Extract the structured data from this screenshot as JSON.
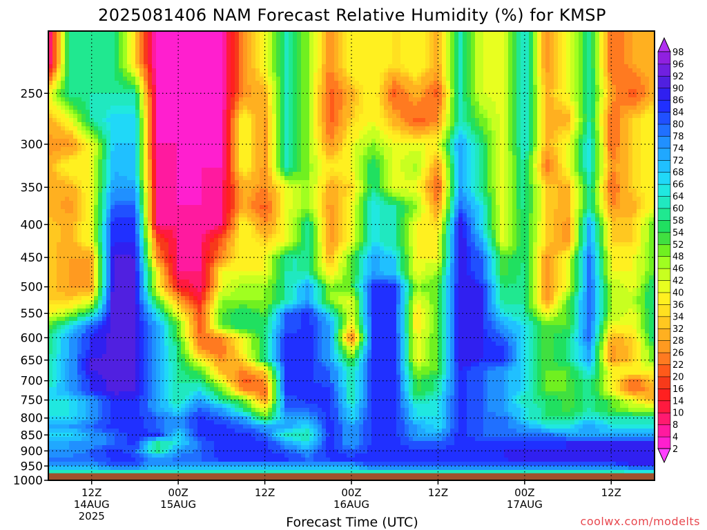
{
  "chart_data": {
    "type": "heatmap",
    "title": "2025081406 NAM Forecast Relative Humidity (%) for KMSP",
    "xlabel": "Forecast Time (UTC)",
    "ylabel": "",
    "credit": "coolwx.com/modelts",
    "y_axis": {
      "unit": "hPa",
      "range": [
        1000,
        200
      ],
      "tick_labels": [
        "250",
        "300",
        "350",
        "400",
        "450",
        "500",
        "550",
        "600",
        "650",
        "700",
        "750",
        "800",
        "850",
        "900",
        "950",
        "1000"
      ]
    },
    "x_axis": {
      "range_hours": [
        0,
        84
      ],
      "ticks": [
        {
          "hour": 6,
          "lines": [
            "12Z",
            "14AUG",
            "2025"
          ]
        },
        {
          "hour": 18,
          "lines": [
            "00Z",
            "15AUG"
          ]
        },
        {
          "hour": 30,
          "lines": [
            "12Z"
          ]
        },
        {
          "hour": 42,
          "lines": [
            "00Z",
            "16AUG"
          ]
        },
        {
          "hour": 54,
          "lines": [
            "12Z"
          ]
        },
        {
          "hour": 66,
          "lines": [
            "00Z",
            "17AUG"
          ]
        },
        {
          "hour": 78,
          "lines": [
            "12Z"
          ]
        }
      ]
    },
    "grid": true,
    "below_ground_level_hpa": 975,
    "below_ground_color": "#a0522d",
    "colorbar": {
      "placement": "right",
      "levels": [
        2,
        4,
        8,
        10,
        14,
        16,
        20,
        22,
        26,
        28,
        32,
        34,
        36,
        40,
        42,
        46,
        48,
        52,
        54,
        58,
        60,
        64,
        66,
        68,
        72,
        74,
        78,
        80,
        84,
        86,
        90,
        92,
        96,
        98
      ],
      "colors": [
        "#ff40ff",
        "#ff1fcf",
        "#ff1a9f",
        "#ff1a6f",
        "#ff1a3f",
        "#ff2020",
        "#f73a1a",
        "#ff5a1a",
        "#ff7a20",
        "#ff9a20",
        "#ffb020",
        "#ffc820",
        "#ffe020",
        "#fff020",
        "#e8ff20",
        "#c8ff20",
        "#a0ff20",
        "#70f020",
        "#40e040",
        "#20e060",
        "#20e890",
        "#20e8c0",
        "#20e8e0",
        "#20d8f8",
        "#20c0ff",
        "#20a8ff",
        "#2090ff",
        "#2070ff",
        "#2050ff",
        "#2030ff",
        "#3020f0",
        "#5020e0",
        "#7020e0",
        "#9020e0",
        "#b030f0"
      ]
    },
    "hours": [
      0,
      3,
      6,
      9,
      12,
      15,
      18,
      21,
      24,
      27,
      30,
      33,
      36,
      39,
      42,
      45,
      48,
      51,
      54,
      57,
      60,
      63,
      66,
      69,
      72,
      75,
      78,
      81,
      84
    ],
    "levels_hpa": [
      225,
      250,
      275,
      300,
      325,
      350,
      375,
      400,
      425,
      450,
      475,
      500,
      525,
      550,
      575,
      600,
      625,
      650,
      675,
      700,
      725,
      750,
      775,
      800,
      825,
      850,
      875,
      900,
      925,
      950,
      975
    ],
    "rh": [
      [
        4,
        60,
        60,
        60,
        35,
        4,
        4,
        4,
        4,
        26,
        40,
        62,
        48,
        26,
        40,
        40,
        35,
        40,
        30,
        62,
        42,
        40,
        66,
        26,
        40,
        60,
        22,
        28,
        30
      ],
      [
        40,
        60,
        60,
        60,
        60,
        4,
        4,
        4,
        4,
        26,
        30,
        62,
        48,
        20,
        30,
        40,
        20,
        30,
        20,
        62,
        42,
        40,
        66,
        30,
        40,
        60,
        28,
        20,
        30
      ],
      [
        30,
        40,
        60,
        68,
        68,
        4,
        4,
        4,
        4,
        40,
        26,
        62,
        48,
        20,
        34,
        40,
        30,
        20,
        26,
        62,
        50,
        40,
        66,
        30,
        30,
        60,
        22,
        34,
        40
      ],
      [
        26,
        26,
        40,
        68,
        68,
        4,
        4,
        4,
        4,
        40,
        26,
        62,
        48,
        26,
        40,
        48,
        40,
        40,
        40,
        74,
        58,
        40,
        66,
        30,
        40,
        66,
        22,
        34,
        40
      ],
      [
        30,
        40,
        40,
        72,
        68,
        8,
        4,
        4,
        4,
        40,
        26,
        62,
        48,
        36,
        40,
        58,
        40,
        48,
        26,
        74,
        58,
        40,
        60,
        22,
        40,
        66,
        26,
        34,
        40
      ],
      [
        30,
        30,
        40,
        74,
        74,
        8,
        4,
        4,
        8,
        30,
        26,
        40,
        48,
        30,
        34,
        58,
        40,
        40,
        20,
        74,
        58,
        40,
        60,
        34,
        30,
        60,
        22,
        34,
        40
      ],
      [
        30,
        26,
        40,
        80,
        80,
        8,
        4,
        4,
        8,
        30,
        20,
        40,
        48,
        26,
        40,
        66,
        60,
        48,
        26,
        80,
        66,
        40,
        60,
        34,
        30,
        60,
        26,
        30,
        40
      ],
      [
        34,
        30,
        40,
        86,
        86,
        8,
        8,
        4,
        8,
        40,
        26,
        40,
        60,
        26,
        40,
        66,
        60,
        40,
        34,
        90,
        66,
        40,
        58,
        34,
        26,
        74,
        34,
        34,
        52
      ],
      [
        34,
        30,
        40,
        86,
        86,
        22,
        8,
        8,
        22,
        40,
        34,
        40,
        60,
        26,
        40,
        66,
        60,
        40,
        40,
        90,
        74,
        40,
        58,
        34,
        26,
        74,
        34,
        34,
        52
      ],
      [
        34,
        28,
        28,
        92,
        90,
        26,
        8,
        8,
        26,
        40,
        40,
        60,
        60,
        30,
        52,
        74,
        68,
        40,
        40,
        90,
        80,
        52,
        58,
        26,
        40,
        80,
        40,
        40,
        52
      ],
      [
        34,
        28,
        28,
        92,
        90,
        40,
        8,
        8,
        40,
        40,
        40,
        60,
        60,
        36,
        52,
        74,
        68,
        40,
        48,
        90,
        80,
        52,
        60,
        26,
        40,
        80,
        40,
        40,
        52
      ],
      [
        34,
        28,
        28,
        92,
        90,
        40,
        14,
        8,
        40,
        48,
        48,
        60,
        74,
        48,
        52,
        86,
        86,
        48,
        52,
        90,
        86,
        58,
        60,
        26,
        40,
        80,
        46,
        40,
        60
      ],
      [
        34,
        34,
        40,
        92,
        90,
        52,
        30,
        14,
        48,
        48,
        48,
        60,
        74,
        48,
        40,
        86,
        86,
        40,
        52,
        90,
        86,
        58,
        60,
        26,
        52,
        80,
        46,
        46,
        60
      ],
      [
        40,
        46,
        60,
        92,
        90,
        66,
        40,
        20,
        52,
        58,
        52,
        80,
        86,
        66,
        40,
        86,
        86,
        36,
        52,
        90,
        86,
        66,
        60,
        40,
        52,
        80,
        46,
        40,
        60
      ],
      [
        52,
        66,
        80,
        92,
        90,
        74,
        52,
        20,
        52,
        58,
        58,
        80,
        86,
        74,
        36,
        86,
        86,
        36,
        52,
        90,
        86,
        74,
        66,
        52,
        52,
        80,
        40,
        40,
        60
      ],
      [
        58,
        74,
        86,
        92,
        90,
        74,
        52,
        22,
        26,
        40,
        58,
        86,
        86,
        74,
        20,
        86,
        86,
        40,
        52,
        90,
        86,
        80,
        66,
        52,
        58,
        80,
        30,
        34,
        60
      ],
      [
        58,
        74,
        86,
        92,
        90,
        74,
        58,
        26,
        22,
        40,
        58,
        86,
        86,
        74,
        40,
        86,
        86,
        40,
        52,
        90,
        86,
        86,
        66,
        52,
        58,
        74,
        26,
        34,
        52
      ],
      [
        60,
        74,
        90,
        92,
        90,
        74,
        58,
        40,
        26,
        34,
        58,
        86,
        86,
        74,
        52,
        86,
        86,
        40,
        52,
        90,
        86,
        86,
        66,
        52,
        58,
        74,
        26,
        34,
        52
      ],
      [
        60,
        74,
        90,
        92,
        90,
        74,
        60,
        52,
        30,
        26,
        34,
        86,
        86,
        80,
        60,
        86,
        86,
        48,
        52,
        86,
        80,
        74,
        66,
        52,
        52,
        66,
        40,
        40,
        40
      ],
      [
        60,
        74,
        86,
        92,
        90,
        74,
        60,
        58,
        40,
        20,
        26,
        86,
        86,
        80,
        60,
        86,
        86,
        52,
        60,
        86,
        80,
        74,
        66,
        52,
        52,
        60,
        40,
        22,
        34
      ],
      [
        66,
        74,
        86,
        92,
        90,
        74,
        60,
        66,
        52,
        26,
        22,
        86,
        86,
        86,
        60,
        86,
        86,
        52,
        60,
        86,
        80,
        74,
        66,
        52,
        52,
        60,
        40,
        22,
        30
      ],
      [
        66,
        66,
        74,
        86,
        86,
        74,
        60,
        74,
        58,
        52,
        26,
        80,
        86,
        86,
        60,
        86,
        86,
        60,
        66,
        86,
        80,
        74,
        60,
        58,
        52,
        60,
        52,
        40,
        30
      ],
      [
        66,
        66,
        74,
        86,
        86,
        74,
        66,
        80,
        74,
        58,
        40,
        80,
        80,
        86,
        66,
        86,
        86,
        66,
        66,
        86,
        80,
        74,
        66,
        58,
        52,
        60,
        52,
        46,
        46
      ],
      [
        66,
        66,
        74,
        86,
        86,
        80,
        74,
        86,
        80,
        74,
        52,
        74,
        74,
        86,
        66,
        86,
        86,
        66,
        66,
        86,
        80,
        80,
        66,
        58,
        58,
        66,
        60,
        60,
        60
      ],
      [
        74,
        74,
        80,
        86,
        86,
        80,
        74,
        86,
        86,
        80,
        74,
        74,
        66,
        86,
        74,
        86,
        86,
        74,
        66,
        86,
        80,
        80,
        74,
        66,
        66,
        74,
        66,
        66,
        66
      ],
      [
        66,
        66,
        74,
        80,
        86,
        86,
        66,
        86,
        86,
        86,
        80,
        60,
        60,
        86,
        74,
        86,
        86,
        74,
        74,
        86,
        80,
        80,
        80,
        80,
        74,
        74,
        74,
        74,
        74
      ],
      [
        74,
        74,
        74,
        80,
        86,
        58,
        66,
        80,
        86,
        86,
        86,
        74,
        66,
        86,
        74,
        86,
        86,
        80,
        80,
        86,
        86,
        86,
        86,
        86,
        86,
        86,
        86,
        86,
        86
      ],
      [
        74,
        74,
        80,
        86,
        80,
        58,
        74,
        80,
        86,
        86,
        86,
        80,
        74,
        86,
        80,
        86,
        86,
        86,
        86,
        86,
        86,
        86,
        86,
        86,
        86,
        90,
        90,
        90,
        90
      ],
      [
        80,
        80,
        80,
        86,
        86,
        74,
        80,
        80,
        86,
        86,
        86,
        86,
        80,
        86,
        86,
        86,
        86,
        86,
        86,
        86,
        86,
        86,
        90,
        90,
        90,
        90,
        90,
        90,
        90
      ],
      [
        74,
        74,
        74,
        80,
        80,
        74,
        74,
        74,
        74,
        74,
        74,
        74,
        74,
        74,
        74,
        80,
        80,
        80,
        80,
        80,
        80,
        80,
        80,
        80,
        80,
        80,
        80,
        86,
        86
      ],
      [
        60,
        60,
        60,
        60,
        60,
        60,
        60,
        60,
        60,
        60,
        60,
        60,
        60,
        60,
        60,
        60,
        60,
        60,
        60,
        60,
        60,
        60,
        60,
        60,
        60,
        60,
        60,
        60,
        60
      ]
    ]
  }
}
